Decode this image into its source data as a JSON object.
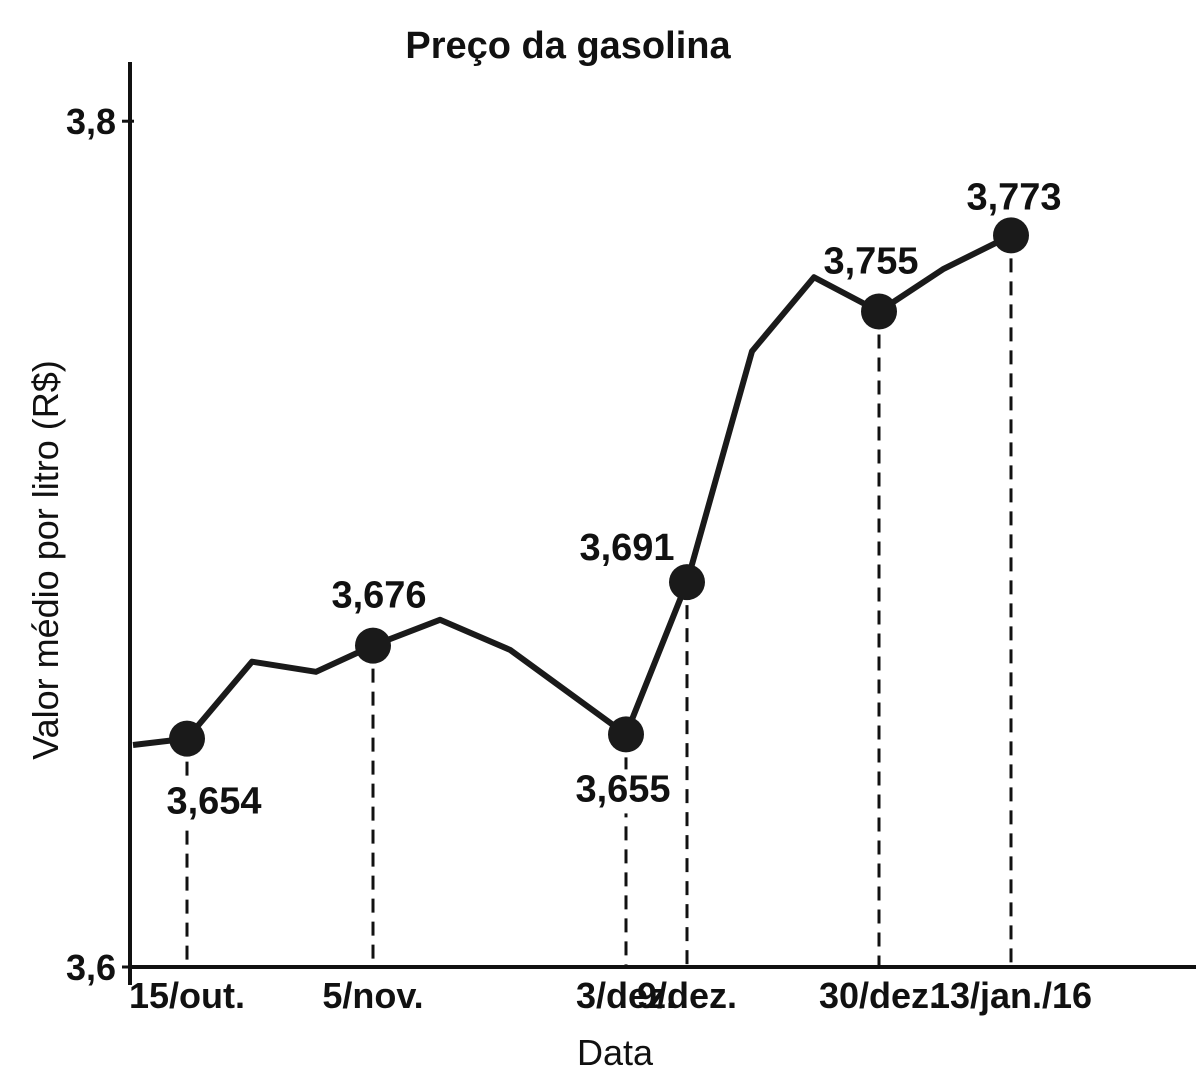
{
  "chart_data": {
    "type": "line",
    "title": "Preço da gasolina",
    "x_label": "Data",
    "y_label": "Valor médio por litro (R$)",
    "categories": [
      null,
      "15/out.",
      null,
      null,
      "5/nov.",
      null,
      null,
      "3/dez.",
      "9/dez.",
      null,
      null,
      "30/dez.",
      null,
      "13/jan./16"
    ],
    "series": [
      {
        "name": "Preço",
        "color": "#1a1a1a",
        "values": [
          3.6525,
          3.654,
          3.6722,
          3.6698,
          3.676,
          3.6821,
          3.675,
          3.655,
          3.691,
          3.7456,
          3.7631,
          3.755,
          3.765,
          3.773
        ],
        "value_labels": [
          null,
          "3,654",
          null,
          null,
          "3,676",
          null,
          null,
          "3,655",
          "3,691",
          null,
          null,
          "3,755",
          null,
          "3,773"
        ]
      }
    ],
    "ylim": [
      3.6,
      3.814
    ],
    "yticks": [
      {
        "value": 3.6,
        "label": "3,6"
      },
      {
        "value": 3.8,
        "label": "3,8"
      }
    ]
  }
}
